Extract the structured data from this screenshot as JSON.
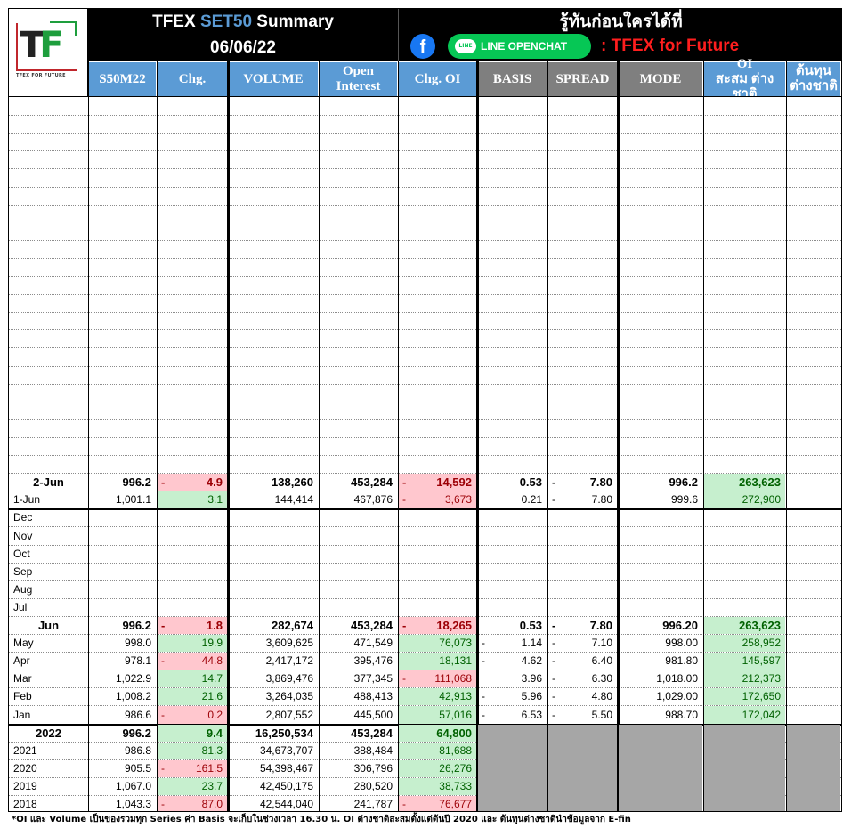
{
  "header": {
    "title_pre": "TFEX ",
    "title_highlight": "SET50",
    "title_post": " Summary",
    "date": "06/06/22",
    "slogan": "รู้ทันก่อนใครได้ที่",
    "line_label": "LINE OPENCHAT",
    "line_bubble": "LINE",
    "group_name": ": TFEX for Future",
    "logo_text_t": "T",
    "logo_text_f": "F",
    "logo_sub": "TFEX FOR FUTURE"
  },
  "colors": {
    "header_blue": "#5b9bd5",
    "header_gray": "#7f7f7f",
    "positive_fill": "#c6efce",
    "negative_fill": "#ffc7ce",
    "accent_red": "#ff1e1e"
  },
  "columns": [
    "S50M22",
    "Chg.",
    "VOLUME",
    "Open Interest",
    "Chg. OI",
    "BASIS",
    "SPREAD",
    "MODE",
    "OI สะสม ต่างชาติ",
    "ต้นทุน ต่างชาติ"
  ],
  "daily_rows": [
    {
      "label": "2-Jun",
      "price": "996.2",
      "chg_sign": "-",
      "chg": "4.9",
      "chg_type": "neg",
      "volume": "138,260",
      "oi": "453,284",
      "chg_oi_sign": "-",
      "chg_oi": "14,592",
      "chg_oi_type": "neg",
      "basis_sign": "",
      "basis": "0.53",
      "spread_sign": "-",
      "spread": "7.80",
      "mode": "996.2",
      "foreign_oi": "263,623",
      "foreign_cost": "",
      "bold": true
    },
    {
      "label": "1-Jun",
      "price": "1,001.1",
      "chg_sign": "",
      "chg": "3.1",
      "chg_type": "pos",
      "volume": "144,414",
      "oi": "467,876",
      "chg_oi_sign": "-",
      "chg_oi": "3,673",
      "chg_oi_type": "neg",
      "basis_sign": "",
      "basis": "0.21",
      "spread_sign": "-",
      "spread": "7.80",
      "mode": "999.6",
      "foreign_oi": "272,900",
      "foreign_cost": "",
      "bold": false
    }
  ],
  "empty_months": [
    "Dec",
    "Nov",
    "Oct",
    "Sep",
    "Aug",
    "Jul"
  ],
  "monthly_rows": [
    {
      "label": "Jun",
      "price": "996.2",
      "chg_sign": "-",
      "chg": "1.8",
      "chg_type": "neg",
      "volume": "282,674",
      "oi": "453,284",
      "chg_oi_sign": "-",
      "chg_oi": "18,265",
      "chg_oi_type": "neg",
      "basis_sign": "",
      "basis": "0.53",
      "spread_sign": "-",
      "spread": "7.80",
      "mode": "996.20",
      "foreign_oi": "263,623",
      "foreign_cost": "",
      "bold": true
    },
    {
      "label": "May",
      "price": "998.0",
      "chg_sign": "",
      "chg": "19.9",
      "chg_type": "pos",
      "volume": "3,609,625",
      "oi": "471,549",
      "chg_oi_sign": "",
      "chg_oi": "76,073",
      "chg_oi_type": "pos",
      "basis_sign": "-",
      "basis": "1.14",
      "spread_sign": "-",
      "spread": "7.10",
      "mode": "998.00",
      "foreign_oi": "258,952",
      "foreign_cost": "",
      "bold": false
    },
    {
      "label": "Apr",
      "price": "978.1",
      "chg_sign": "-",
      "chg": "44.8",
      "chg_type": "neg",
      "volume": "2,417,172",
      "oi": "395,476",
      "chg_oi_sign": "",
      "chg_oi": "18,131",
      "chg_oi_type": "pos",
      "basis_sign": "-",
      "basis": "4.62",
      "spread_sign": "-",
      "spread": "6.40",
      "mode": "981.80",
      "foreign_oi": "145,597",
      "foreign_cost": "",
      "bold": false
    },
    {
      "label": "Mar",
      "price": "1,022.9",
      "chg_sign": "",
      "chg": "14.7",
      "chg_type": "pos",
      "volume": "3,869,476",
      "oi": "377,345",
      "chg_oi_sign": "-",
      "chg_oi": "111,068",
      "chg_oi_type": "neg",
      "basis_sign": "",
      "basis": "3.96",
      "spread_sign": "-",
      "spread": "6.30",
      "mode": "1,018.00",
      "foreign_oi": "212,373",
      "foreign_cost": "",
      "bold": false
    },
    {
      "label": "Feb",
      "price": "1,008.2",
      "chg_sign": "",
      "chg": "21.6",
      "chg_type": "pos",
      "volume": "3,264,035",
      "oi": "488,413",
      "chg_oi_sign": "",
      "chg_oi": "42,913",
      "chg_oi_type": "pos",
      "basis_sign": "-",
      "basis": "5.96",
      "spread_sign": "-",
      "spread": "4.80",
      "mode": "1,029.00",
      "foreign_oi": "172,650",
      "foreign_cost": "",
      "bold": false
    },
    {
      "label": "Jan",
      "price": "986.6",
      "chg_sign": "-",
      "chg": "0.2",
      "chg_type": "neg",
      "volume": "2,807,552",
      "oi": "445,500",
      "chg_oi_sign": "",
      "chg_oi": "57,016",
      "chg_oi_type": "pos",
      "basis_sign": "-",
      "basis": "6.53",
      "spread_sign": "-",
      "spread": "5.50",
      "mode": "988.70",
      "foreign_oi": "172,042",
      "foreign_cost": "",
      "bold": false
    }
  ],
  "yearly_rows": [
    {
      "label": "2022",
      "price": "996.2",
      "chg_sign": "",
      "chg": "9.4",
      "chg_type": "pos",
      "volume": "16,250,534",
      "oi": "453,284",
      "chg_oi_sign": "",
      "chg_oi": "64,800",
      "chg_oi_type": "pos",
      "bold": true
    },
    {
      "label": "2021",
      "price": "986.8",
      "chg_sign": "",
      "chg": "81.3",
      "chg_type": "pos",
      "volume": "34,673,707",
      "oi": "388,484",
      "chg_oi_sign": "",
      "chg_oi": "81,688",
      "chg_oi_type": "pos",
      "bold": false
    },
    {
      "label": "2020",
      "price": "905.5",
      "chg_sign": "-",
      "chg": "161.5",
      "chg_type": "neg",
      "volume": "54,398,467",
      "oi": "306,796",
      "chg_oi_sign": "",
      "chg_oi": "26,276",
      "chg_oi_type": "pos",
      "bold": false
    },
    {
      "label": "2019",
      "price": "1,067.0",
      "chg_sign": "",
      "chg": "23.7",
      "chg_type": "pos",
      "volume": "42,450,175",
      "oi": "280,520",
      "chg_oi_sign": "",
      "chg_oi": "38,733",
      "chg_oi_type": "pos",
      "bold": false
    },
    {
      "label": "2018",
      "price": "1,043.3",
      "chg_sign": "-",
      "chg": "87.0",
      "chg_type": "neg",
      "volume": "42,544,040",
      "oi": "241,787",
      "chg_oi_sign": "-",
      "chg_oi": "76,677",
      "chg_oi_type": "neg",
      "bold": false
    }
  ],
  "footnote": "*OI และ Volume เป็นของรวมทุก Series ค่า Basis จะเก็บในช่วงเวลา 16.30 น. OI ต่างชาติสะสมตั้งแต่ต้นปี 2020 และ ต้นทุนต่างชาตินำข้อมูลจาก E-fin"
}
